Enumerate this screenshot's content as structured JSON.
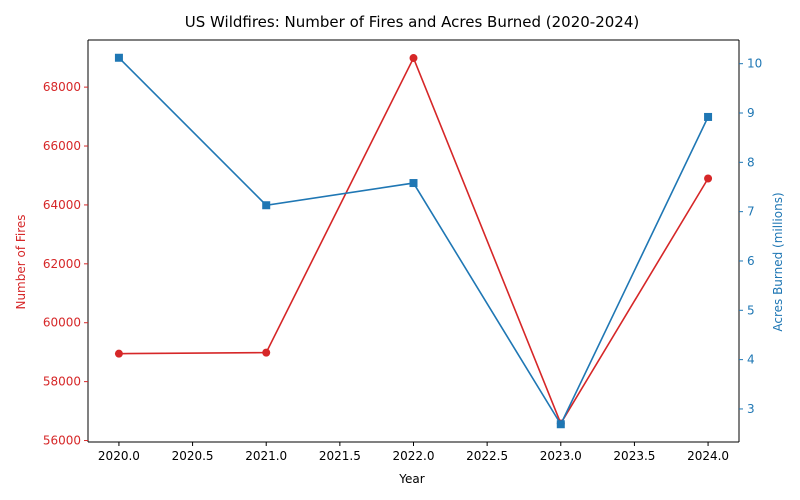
{
  "chart_data": {
    "type": "line",
    "title": "US Wildfires: Number of Fires and Acres Burned (2020-2024)",
    "xlabel": "Year",
    "x": [
      2020,
      2021,
      2022,
      2023,
      2024
    ],
    "xlim": [
      1999.9,
      2024.2
    ],
    "x_ticks": [
      "2020.0",
      "2020.5",
      "2021.0",
      "2021.5",
      "2022.0",
      "2022.5",
      "2023.0",
      "2023.5",
      "2024.0"
    ],
    "x_tick_values": [
      2020.0,
      2020.5,
      2021.0,
      2021.5,
      2022.0,
      2022.5,
      2023.0,
      2023.5,
      2024.0
    ],
    "grid": false,
    "axes": {
      "left": {
        "label": "Number of Fires",
        "color": "#d62728",
        "ylim": [
          55950,
          69600
        ],
        "ticks": [
          "56000",
          "58000",
          "60000",
          "62000",
          "64000",
          "66000",
          "68000"
        ],
        "tick_values": [
          56000,
          58000,
          60000,
          62000,
          64000,
          66000,
          68000
        ]
      },
      "right": {
        "label": "Acres Burned (millions)",
        "color": "#1f77b4",
        "ylim": [
          2.33,
          10.48
        ],
        "ticks": [
          "3",
          "4",
          "5",
          "6",
          "7",
          "8",
          "9",
          "10"
        ],
        "tick_values": [
          3,
          4,
          5,
          6,
          7,
          8,
          9,
          10
        ]
      }
    },
    "series": [
      {
        "axis": "left",
        "color": "#d62728",
        "marker": "circle",
        "values": [
          58950,
          58985,
          68988,
          56580,
          64897
        ]
      },
      {
        "axis": "right",
        "color": "#1f77b4",
        "marker": "square",
        "values": [
          10.12,
          7.13,
          7.58,
          2.69,
          8.92
        ]
      }
    ]
  }
}
